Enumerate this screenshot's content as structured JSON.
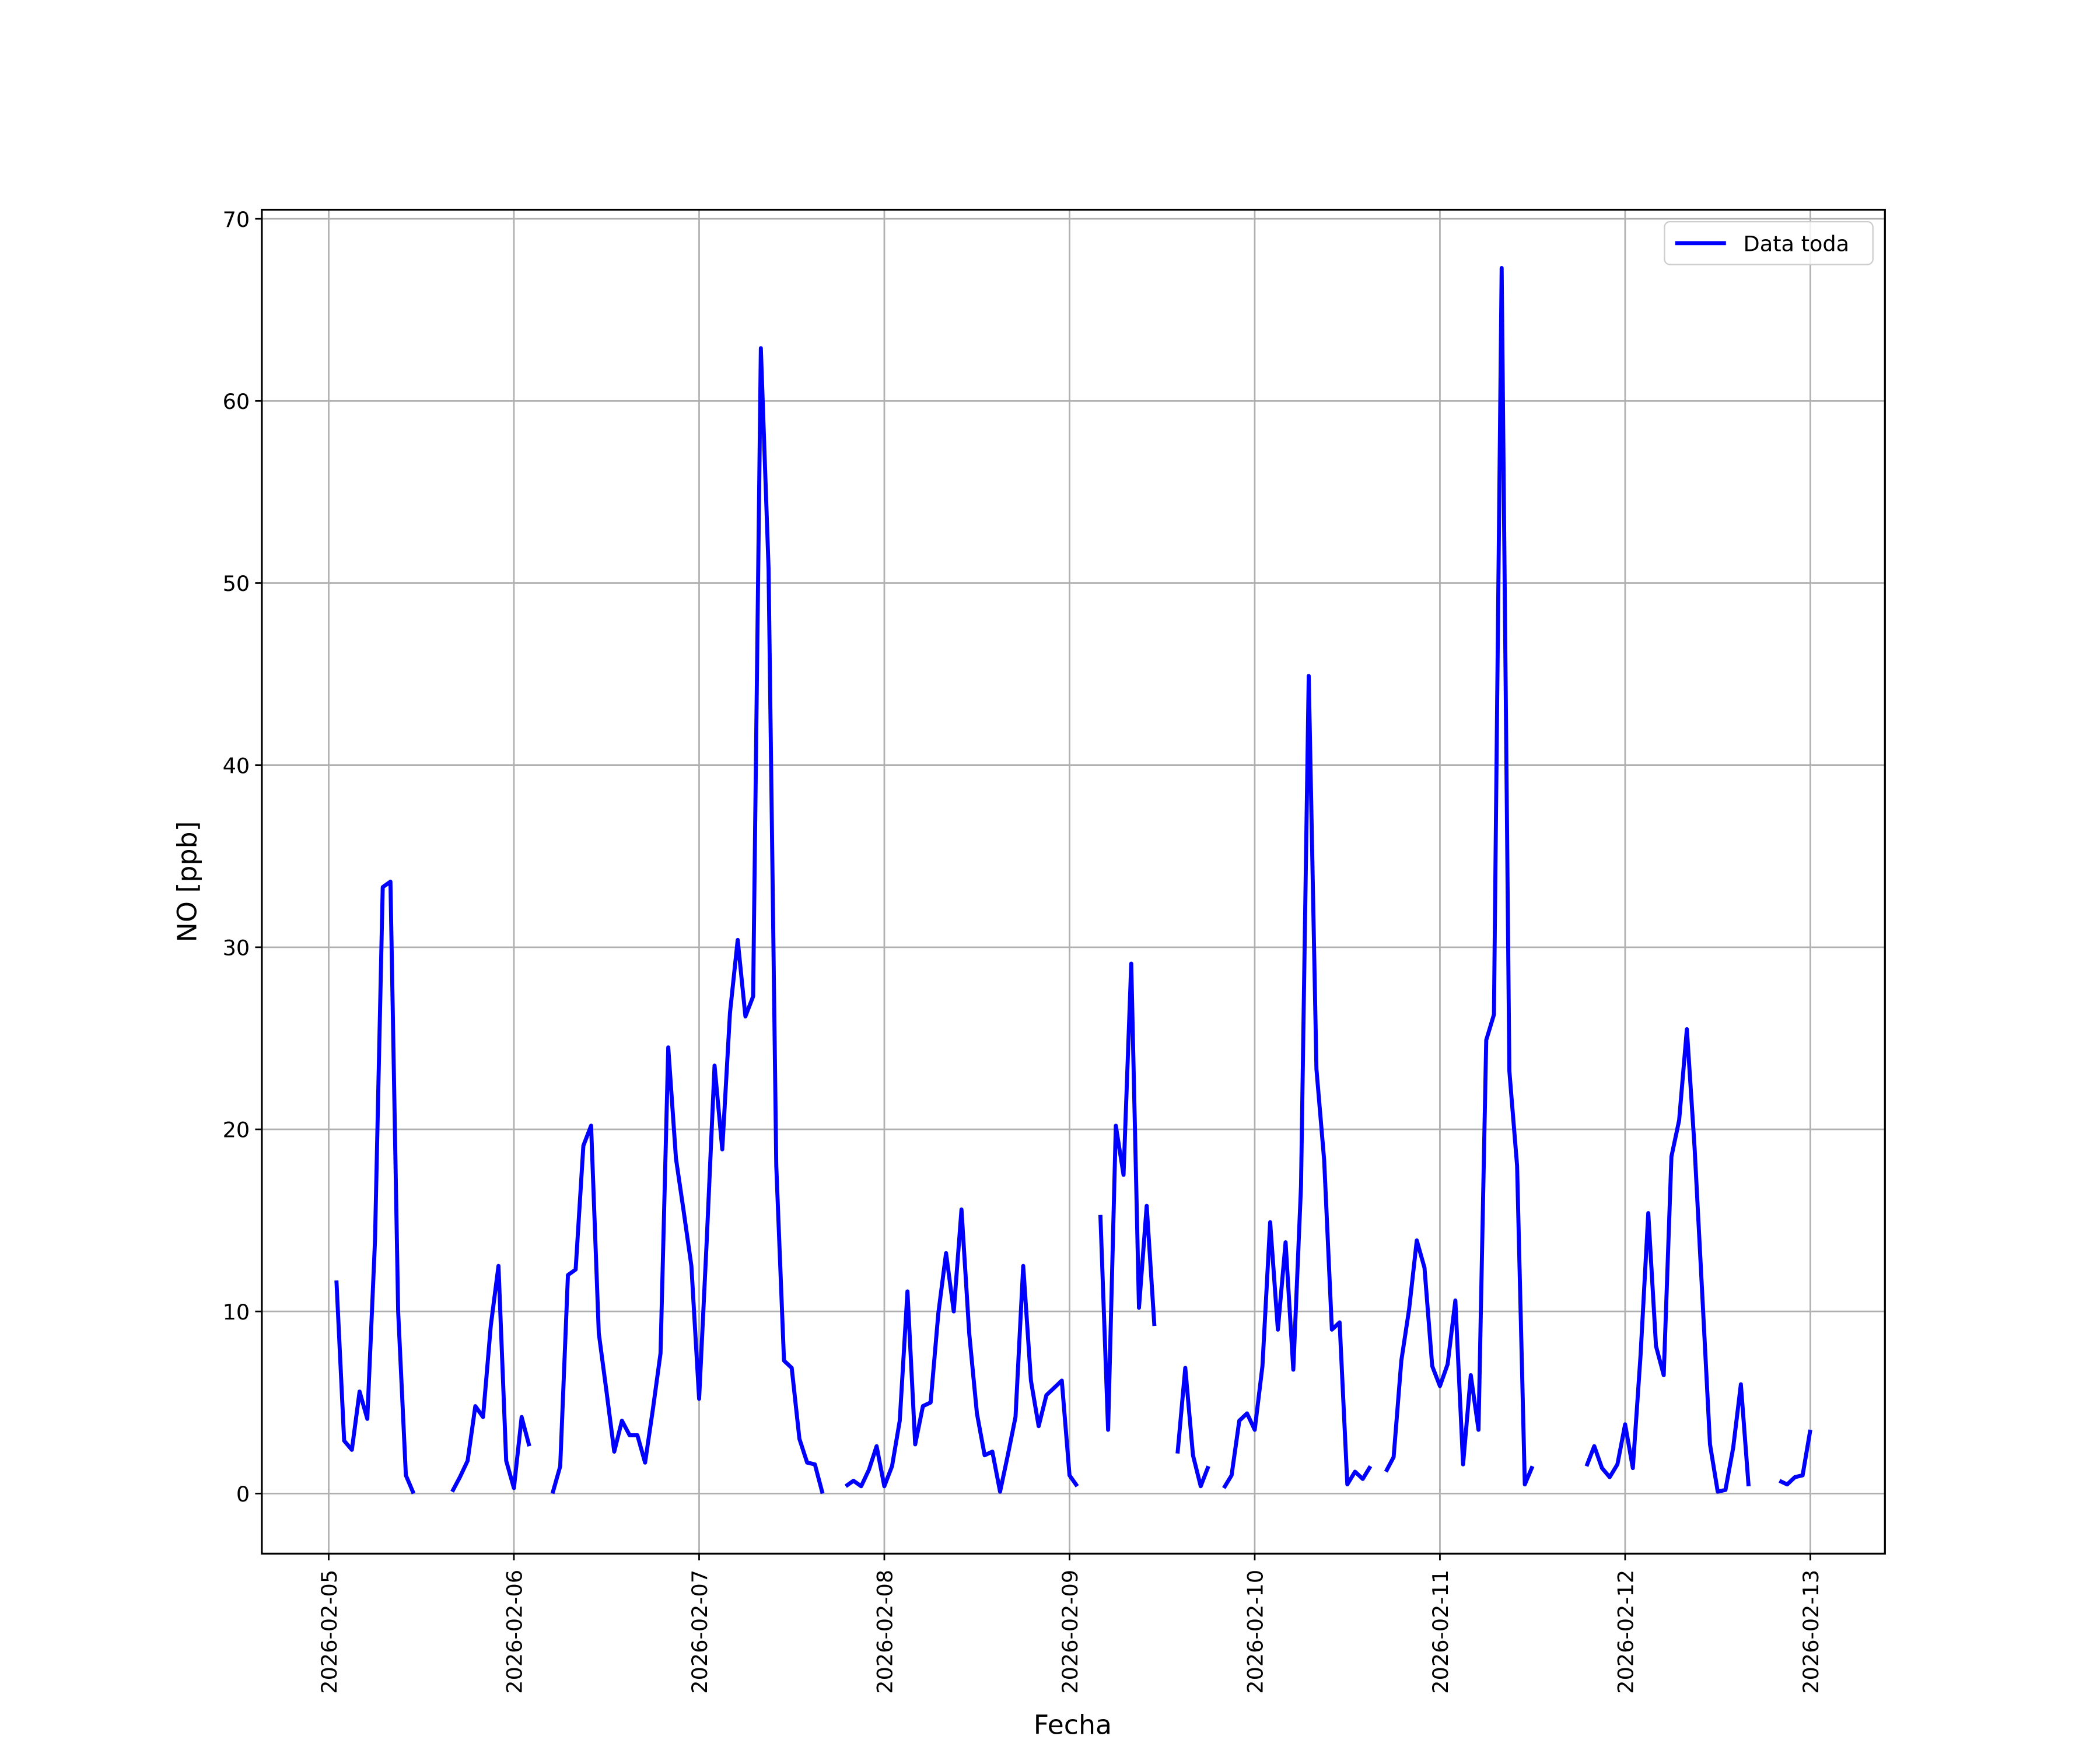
{
  "chart_data": {
    "type": "line",
    "xlabel": "Fecha",
    "ylabel": "NO [ppb]",
    "x": [
      "2026-02-05 01:00",
      "2026-02-05 02:00",
      "2026-02-05 03:00",
      "2026-02-05 04:00",
      "2026-02-05 05:00",
      "2026-02-05 06:00",
      "2026-02-05 07:00",
      "2026-02-05 08:00",
      "2026-02-05 09:00",
      "2026-02-05 10:00",
      "2026-02-05 11:00",
      "2026-02-05 12:00",
      "2026-02-05 13:00",
      "2026-02-05 14:00",
      "2026-02-05 15:00",
      "2026-02-05 16:00",
      "2026-02-05 17:00",
      "2026-02-05 18:00",
      "2026-02-05 19:00",
      "2026-02-05 20:00",
      "2026-02-05 21:00",
      "2026-02-05 22:00",
      "2026-02-05 23:00",
      "2026-02-06 00:00",
      "2026-02-06 01:00",
      "2026-02-06 02:00",
      "2026-02-06 03:00",
      "2026-02-06 04:00",
      "2026-02-06 05:00",
      "2026-02-06 06:00",
      "2026-02-06 07:00",
      "2026-02-06 08:00",
      "2026-02-06 09:00",
      "2026-02-06 10:00",
      "2026-02-06 11:00",
      "2026-02-06 12:00",
      "2026-02-06 13:00",
      "2026-02-06 14:00",
      "2026-02-06 15:00",
      "2026-02-06 16:00",
      "2026-02-06 17:00",
      "2026-02-06 18:00",
      "2026-02-06 19:00",
      "2026-02-06 20:00",
      "2026-02-06 21:00",
      "2026-02-06 22:00",
      "2026-02-06 23:00",
      "2026-02-07 00:00",
      "2026-02-07 01:00",
      "2026-02-07 02:00",
      "2026-02-07 03:00",
      "2026-02-07 04:00",
      "2026-02-07 05:00",
      "2026-02-07 06:00",
      "2026-02-07 07:00",
      "2026-02-07 08:00",
      "2026-02-07 09:00",
      "2026-02-07 10:00",
      "2026-02-07 11:00",
      "2026-02-07 12:00",
      "2026-02-07 13:00",
      "2026-02-07 14:00",
      "2026-02-07 15:00",
      "2026-02-07 16:00",
      "2026-02-07 17:00",
      "2026-02-07 18:00",
      "2026-02-07 19:00",
      "2026-02-07 20:00",
      "2026-02-07 21:00",
      "2026-02-07 22:00",
      "2026-02-07 23:00",
      "2026-02-08 00:00",
      "2026-02-08 01:00",
      "2026-02-08 02:00",
      "2026-02-08 03:00",
      "2026-02-08 04:00",
      "2026-02-08 05:00",
      "2026-02-08 06:00",
      "2026-02-08 07:00",
      "2026-02-08 08:00",
      "2026-02-08 09:00",
      "2026-02-08 10:00",
      "2026-02-08 11:00",
      "2026-02-08 12:00",
      "2026-02-08 13:00",
      "2026-02-08 14:00",
      "2026-02-08 15:00",
      "2026-02-08 16:00",
      "2026-02-08 17:00",
      "2026-02-08 18:00",
      "2026-02-08 19:00",
      "2026-02-08 20:00",
      "2026-02-08 21:00",
      "2026-02-08 22:00",
      "2026-02-08 23:00",
      "2026-02-09 00:00",
      "2026-02-09 01:00",
      "2026-02-09 02:00",
      "2026-02-09 03:00",
      "2026-02-09 04:00",
      "2026-02-09 05:00",
      "2026-02-09 06:00",
      "2026-02-09 07:00",
      "2026-02-09 08:00",
      "2026-02-09 09:00",
      "2026-02-09 10:00",
      "2026-02-09 11:00",
      "2026-02-09 12:00",
      "2026-02-09 13:00",
      "2026-02-09 14:00",
      "2026-02-09 15:00",
      "2026-02-09 16:00",
      "2026-02-09 17:00",
      "2026-02-09 18:00",
      "2026-02-09 19:00",
      "2026-02-09 20:00",
      "2026-02-09 21:00",
      "2026-02-09 22:00",
      "2026-02-09 23:00",
      "2026-02-10 00:00",
      "2026-02-10 01:00",
      "2026-02-10 02:00",
      "2026-02-10 03:00",
      "2026-02-10 04:00",
      "2026-02-10 05:00",
      "2026-02-10 06:00",
      "2026-02-10 07:00",
      "2026-02-10 08:00",
      "2026-02-10 09:00",
      "2026-02-10 10:00",
      "2026-02-10 11:00",
      "2026-02-10 12:00",
      "2026-02-10 13:00",
      "2026-02-10 14:00",
      "2026-02-10 15:00",
      "2026-02-10 16:00",
      "2026-02-10 17:00",
      "2026-02-10 18:00",
      "2026-02-10 19:00",
      "2026-02-10 20:00",
      "2026-02-10 21:00",
      "2026-02-10 22:00",
      "2026-02-10 23:00",
      "2026-02-11 00:00",
      "2026-02-11 01:00",
      "2026-02-11 02:00",
      "2026-02-11 03:00",
      "2026-02-11 04:00",
      "2026-02-11 05:00",
      "2026-02-11 06:00",
      "2026-02-11 07:00",
      "2026-02-11 08:00",
      "2026-02-11 09:00",
      "2026-02-11 10:00",
      "2026-02-11 11:00",
      "2026-02-11 12:00",
      "2026-02-11 13:00",
      "2026-02-11 14:00",
      "2026-02-11 15:00",
      "2026-02-11 16:00",
      "2026-02-11 17:00",
      "2026-02-11 18:00",
      "2026-02-11 19:00",
      "2026-02-11 20:00",
      "2026-02-11 21:00",
      "2026-02-11 22:00",
      "2026-02-11 23:00",
      "2026-02-12 00:00",
      "2026-02-12 01:00",
      "2026-02-12 02:00",
      "2026-02-12 03:00",
      "2026-02-12 04:00",
      "2026-02-12 05:00",
      "2026-02-12 06:00",
      "2026-02-12 07:00",
      "2026-02-12 08:00",
      "2026-02-12 09:00",
      "2026-02-12 10:00",
      "2026-02-12 11:00",
      "2026-02-12 12:00",
      "2026-02-12 13:00",
      "2026-02-12 14:00",
      "2026-02-12 15:00",
      "2026-02-12 16:00",
      "2026-02-12 17:00",
      "2026-02-12 18:00",
      "2026-02-12 19:00",
      "2026-02-12 20:00",
      "2026-02-12 21:00",
      "2026-02-12 22:00",
      "2026-02-12 23:00",
      "2026-02-13 00:00"
    ],
    "series": [
      {
        "name": "Data toda",
        "color": "#0000ff",
        "values": [
          11.7,
          2.9,
          2.4,
          5.6,
          4.1,
          13.9,
          33.3,
          33.6,
          10.0,
          1.0,
          0.0,
          null,
          null,
          null,
          null,
          0.1,
          0.9,
          1.8,
          4.8,
          4.2,
          9.2,
          12.5,
          1.8,
          0.3,
          4.2,
          2.6,
          null,
          null,
          0.0,
          1.5,
          12.0,
          12.3,
          19.1,
          20.2,
          8.8,
          5.6,
          2.3,
          4.0,
          3.2,
          3.2,
          1.7,
          4.6,
          7.7,
          24.5,
          18.4,
          15.5,
          12.5,
          5.2,
          14.0,
          23.5,
          18.9,
          26.4,
          30.4,
          26.2,
          27.3,
          62.9,
          50.8,
          18.0,
          7.3,
          6.9,
          3.0,
          1.7,
          1.6,
          0.0,
          null,
          null,
          0.4,
          0.7,
          0.4,
          1.3,
          2.6,
          0.4,
          1.5,
          4.0,
          11.1,
          2.7,
          4.8,
          5.0,
          9.9,
          13.2,
          10.0,
          15.6,
          8.8,
          4.4,
          2.1,
          2.3,
          0.1,
          2.1,
          4.2,
          12.5,
          6.2,
          3.7,
          5.4,
          5.8,
          6.2,
          1.0,
          0.4,
          null,
          null,
          15.3,
          3.5,
          20.2,
          17.5,
          29.1,
          10.2,
          15.8,
          9.2,
          null,
          null,
          2.2,
          6.9,
          2.1,
          0.4,
          1.5,
          null,
          0.3,
          1.0,
          4.0,
          4.4,
          3.5,
          7.0,
          14.9,
          9.0,
          13.8,
          6.8,
          16.9,
          44.9,
          23.3,
          18.3,
          9.0,
          9.4,
          0.5,
          1.2,
          0.8,
          1.5,
          null,
          1.2,
          2.0,
          7.3,
          10.1,
          13.9,
          12.4,
          7.0,
          5.9,
          7.1,
          10.6,
          1.6,
          6.5,
          3.5,
          24.9,
          26.3,
          67.3,
          23.2,
          18.0,
          0.5,
          1.5,
          null,
          null,
          null,
          null,
          null,
          null,
          1.5,
          2.6,
          1.4,
          0.9,
          1.6,
          3.8,
          1.4,
          7.6,
          15.4,
          8.1,
          6.5,
          18.5,
          20.5,
          25.5,
          19.0,
          10.9,
          2.7,
          0.1,
          0.2,
          2.5,
          6.0,
          0.4,
          null,
          null,
          null,
          0.7,
          0.5,
          0.9,
          1.0,
          3.5
        ]
      }
    ],
    "xlim": [
      "2026-02-04 15:20",
      "2026-02-13 09:40"
    ],
    "xticks": [
      "2026-02-05",
      "2026-02-06",
      "2026-02-07",
      "2026-02-08",
      "2026-02-09",
      "2026-02-10",
      "2026-02-11",
      "2026-02-12",
      "2026-02-13"
    ],
    "ylim": [
      -3.3,
      70.5
    ],
    "yticks": [
      0,
      10,
      20,
      30,
      40,
      50,
      60,
      70
    ],
    "grid": true,
    "legend": "upper right"
  }
}
